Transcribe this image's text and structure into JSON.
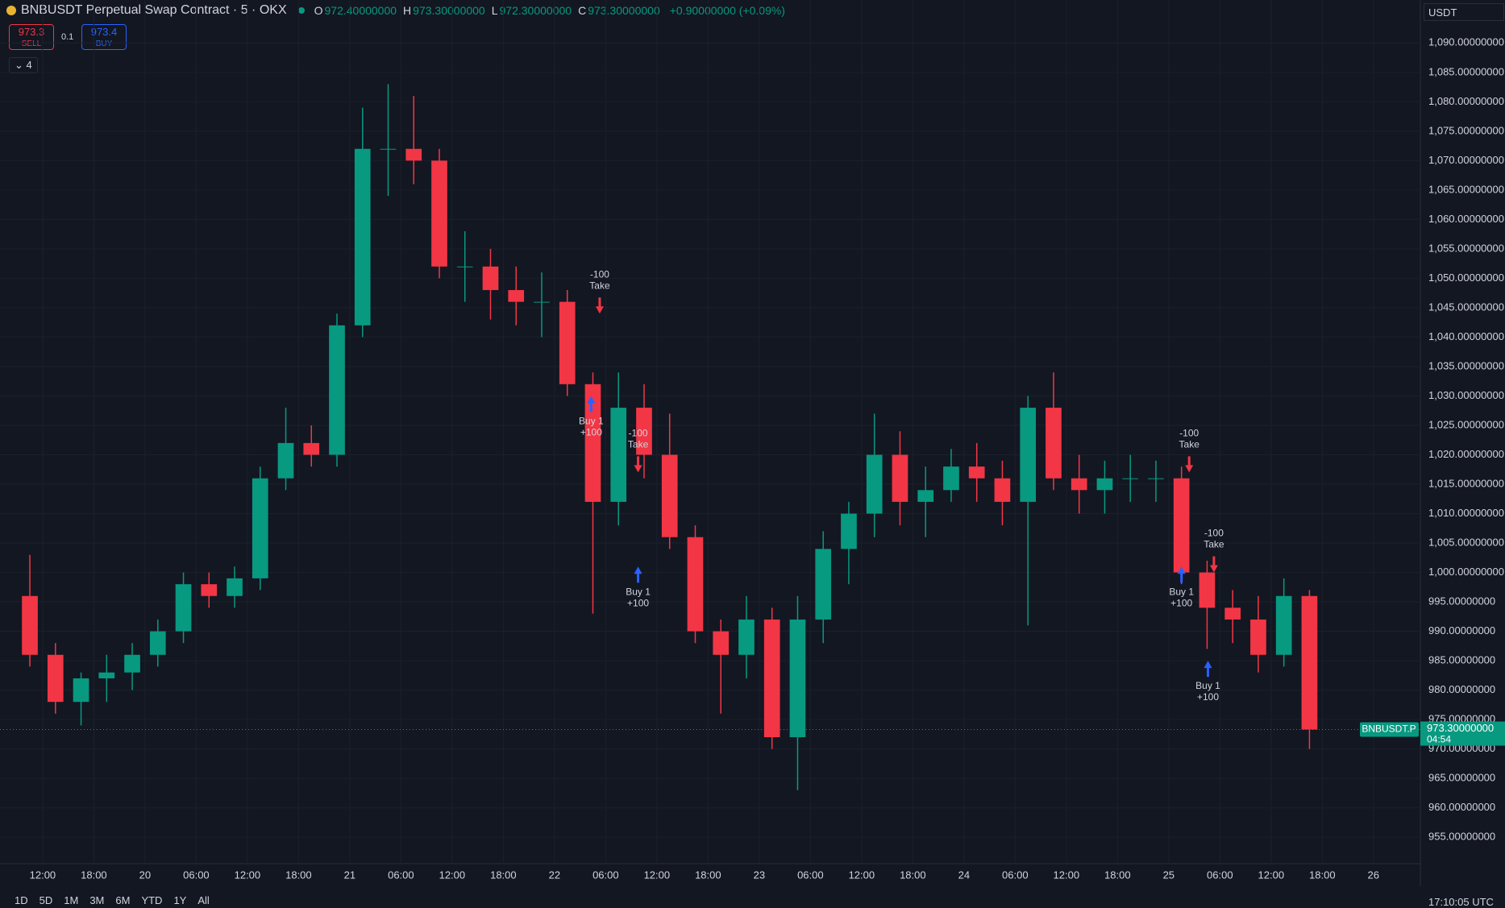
{
  "header": {
    "symbol": "BNBUSDT Perpetual Swap Contract · 5 · OKX",
    "ohlc": [
      {
        "key": "O",
        "value": "972.40000000"
      },
      {
        "key": "H",
        "value": "973.30000000"
      },
      {
        "key": "L",
        "value": "972.30000000"
      },
      {
        "key": "C",
        "value": "973.30000000"
      }
    ],
    "change": "+0.90000000 (+0.09%)",
    "sell": {
      "price": "973.3",
      "label": "SELL"
    },
    "qty": "0.1",
    "buy": {
      "price": "973.4",
      "label": "BUY"
    },
    "indicators": "4",
    "currency": "USDT"
  },
  "chart_data": {
    "type": "candlestick",
    "x": [
      10.5,
      13.5,
      16.5,
      19.5,
      22.5,
      25.5,
      28.5,
      31.5,
      34.5,
      37.5,
      40.5,
      43.5,
      46.5,
      49.5,
      52.5,
      55.5,
      58.5,
      61.5,
      64.5,
      67.5,
      70.5,
      73.5,
      76.5,
      79.5,
      82.5,
      85.5,
      88.5,
      91.5,
      94.5,
      97.5,
      100.5,
      103.5,
      106.5,
      109.5,
      112.5,
      115.5,
      118.5,
      121.5,
      124.5,
      127.5,
      130.5,
      133.5,
      136.5,
      139.5,
      142.5,
      145.5,
      148.5,
      151.5,
      154.5,
      157.5,
      160.5
    ],
    "open": [
      996,
      986,
      978,
      982,
      983,
      986,
      990,
      998,
      996,
      999,
      1016,
      1022,
      1020,
      1042,
      1072,
      1072,
      1070,
      1052,
      1052,
      1048,
      1046,
      1046,
      1032,
      1012,
      1028,
      1020,
      1006,
      990,
      986,
      992,
      972,
      992,
      1004,
      1010,
      1020,
      1012,
      1014,
      1018,
      1016,
      1012,
      1028,
      1016,
      1014,
      1016,
      1016,
      1016,
      1000,
      994,
      992,
      986,
      996
    ],
    "high": [
      1003,
      988,
      983,
      986,
      988,
      992,
      1000,
      1000,
      1001,
      1018,
      1028,
      1025,
      1044,
      1079,
      1083,
      1081,
      1072,
      1058,
      1055,
      1052,
      1051,
      1048,
      1034,
      1034,
      1032,
      1027,
      1008,
      992,
      996,
      994,
      996,
      1007,
      1012,
      1027,
      1024,
      1018,
      1021,
      1022,
      1019,
      1030,
      1034,
      1020,
      1019,
      1020,
      1019,
      1018,
      1002,
      997,
      996,
      999,
      997
    ],
    "low": [
      984,
      976,
      974,
      978,
      980,
      984,
      988,
      994,
      994,
      997,
      1014,
      1018,
      1018,
      1040,
      1064,
      1066,
      1050,
      1046,
      1043,
      1042,
      1040,
      1030,
      993,
      1008,
      1016,
      1004,
      988,
      976,
      982,
      970,
      963,
      988,
      998,
      1006,
      1008,
      1006,
      1012,
      1012,
      1008,
      991,
      1014,
      1010,
      1010,
      1012,
      1012,
      998,
      987,
      988,
      983,
      984,
      970
    ],
    "close": [
      986,
      978,
      982,
      983,
      986,
      990,
      998,
      996,
      999,
      1016,
      1022,
      1020,
      1042,
      1072,
      1072,
      1070,
      1052,
      1052,
      1048,
      1046,
      1046,
      1032,
      1012,
      1028,
      1020,
      1006,
      990,
      986,
      992,
      972,
      992,
      1004,
      1010,
      1020,
      1012,
      1014,
      1018,
      1016,
      1012,
      1028,
      1016,
      1014,
      1016,
      1016,
      1016,
      1000,
      994,
      992,
      986,
      996,
      973.3
    ],
    "up_color": "#089981",
    "down_color": "#f23645",
    "xlim": [
      7,
      173.5
    ],
    "ylim": [
      950.5,
      1097.3
    ],
    "grid": true,
    "xticks": [
      {
        "value": 12,
        "label": "12:00"
      },
      {
        "value": 18,
        "label": "18:00"
      },
      {
        "value": 24,
        "label": "20"
      },
      {
        "value": 30,
        "label": "06:00"
      },
      {
        "value": 36,
        "label": "12:00"
      },
      {
        "value": 42,
        "label": "18:00"
      },
      {
        "value": 48,
        "label": "21"
      },
      {
        "value": 54,
        "label": "06:00"
      },
      {
        "value": 60,
        "label": "12:00"
      },
      {
        "value": 66,
        "label": "18:00"
      },
      {
        "value": 72,
        "label": "22"
      },
      {
        "value": 78,
        "label": "06:00"
      },
      {
        "value": 84,
        "label": "12:00"
      },
      {
        "value": 90,
        "label": "18:00"
      },
      {
        "value": 96,
        "label": "23"
      },
      {
        "value": 102,
        "label": "06:00"
      },
      {
        "value": 108,
        "label": "12:00"
      },
      {
        "value": 114,
        "label": "18:00"
      },
      {
        "value": 120,
        "label": "24"
      },
      {
        "value": 126,
        "label": "06:00"
      },
      {
        "value": 132,
        "label": "12:00"
      },
      {
        "value": 138,
        "label": "18:00"
      },
      {
        "value": 144,
        "label": "25"
      },
      {
        "value": 150,
        "label": "06:00"
      },
      {
        "value": 156,
        "label": "12:00"
      },
      {
        "value": 162,
        "label": "18:00"
      },
      {
        "value": 168,
        "label": "26"
      }
    ],
    "yticks": [
      {
        "value": 955,
        "label": "955.00000000"
      },
      {
        "value": 960,
        "label": "960.00000000"
      },
      {
        "value": 965,
        "label": "965.00000000"
      },
      {
        "value": 970,
        "label": "970.00000000"
      },
      {
        "value": 975,
        "label": "975.00000000"
      },
      {
        "value": 980,
        "label": "980.00000000"
      },
      {
        "value": 985,
        "label": "985.00000000"
      },
      {
        "value": 990,
        "label": "990.00000000"
      },
      {
        "value": 995,
        "label": "995.00000000"
      },
      {
        "value": 1000,
        "label": "1,000.00000000"
      },
      {
        "value": 1005,
        "label": "1,005.00000000"
      },
      {
        "value": 1010,
        "label": "1,010.00000000"
      },
      {
        "value": 1015,
        "label": "1,015.00000000"
      },
      {
        "value": 1020,
        "label": "1,020.00000000"
      },
      {
        "value": 1025,
        "label": "1,025.00000000"
      },
      {
        "value": 1030,
        "label": "1,030.00000000"
      },
      {
        "value": 1035,
        "label": "1,035.00000000"
      },
      {
        "value": 1040,
        "label": "1,040.00000000"
      },
      {
        "value": 1045,
        "label": "1,045.00000000"
      },
      {
        "value": 1050,
        "label": "1,050.00000000"
      },
      {
        "value": 1055,
        "label": "1,055.00000000"
      },
      {
        "value": 1060,
        "label": "1,060.00000000"
      },
      {
        "value": 1065,
        "label": "1,065.00000000"
      },
      {
        "value": 1070,
        "label": "1,070.00000000"
      },
      {
        "value": 1075,
        "label": "1,075.00000000"
      },
      {
        "value": 1080,
        "label": "1,080.00000000"
      },
      {
        "value": 1085,
        "label": "1,085.00000000"
      },
      {
        "value": 1090,
        "label": "1,090.00000000"
      }
    ],
    "last_price": {
      "symbol": "BNBUSDT.P",
      "value": 973.3,
      "label": "973.30000000",
      "countdown": "04:54"
    },
    "annotations": [
      {
        "side": "sell",
        "x": 77.3,
        "y": 1044,
        "lines": [
          "-100",
          "Take"
        ]
      },
      {
        "side": "buy",
        "x": 76.3,
        "y": 1030,
        "lines": [
          "Buy 1",
          "+100"
        ]
      },
      {
        "side": "sell",
        "x": 81.8,
        "y": 1017,
        "lines": [
          "-100",
          "Take"
        ]
      },
      {
        "side": "buy",
        "x": 81.8,
        "y": 1001,
        "lines": [
          "Buy 1",
          "+100"
        ]
      },
      {
        "side": "sell",
        "x": 146.4,
        "y": 1017,
        "lines": [
          "-100",
          "Take"
        ]
      },
      {
        "side": "buy",
        "x": 145.5,
        "y": 1001,
        "lines": [
          "Buy 1",
          "+100"
        ]
      },
      {
        "side": "sell",
        "x": 149.3,
        "y": 1000,
        "lines": [
          "-100",
          "Take"
        ]
      },
      {
        "side": "buy",
        "x": 148.6,
        "y": 985,
        "lines": [
          "Buy 1",
          "+100"
        ]
      }
    ]
  },
  "toolbar": {
    "ranges": [
      "1D",
      "5D",
      "1M",
      "3M",
      "6M",
      "YTD",
      "1Y",
      "All"
    ],
    "clock": "17:10:05 UTC"
  }
}
